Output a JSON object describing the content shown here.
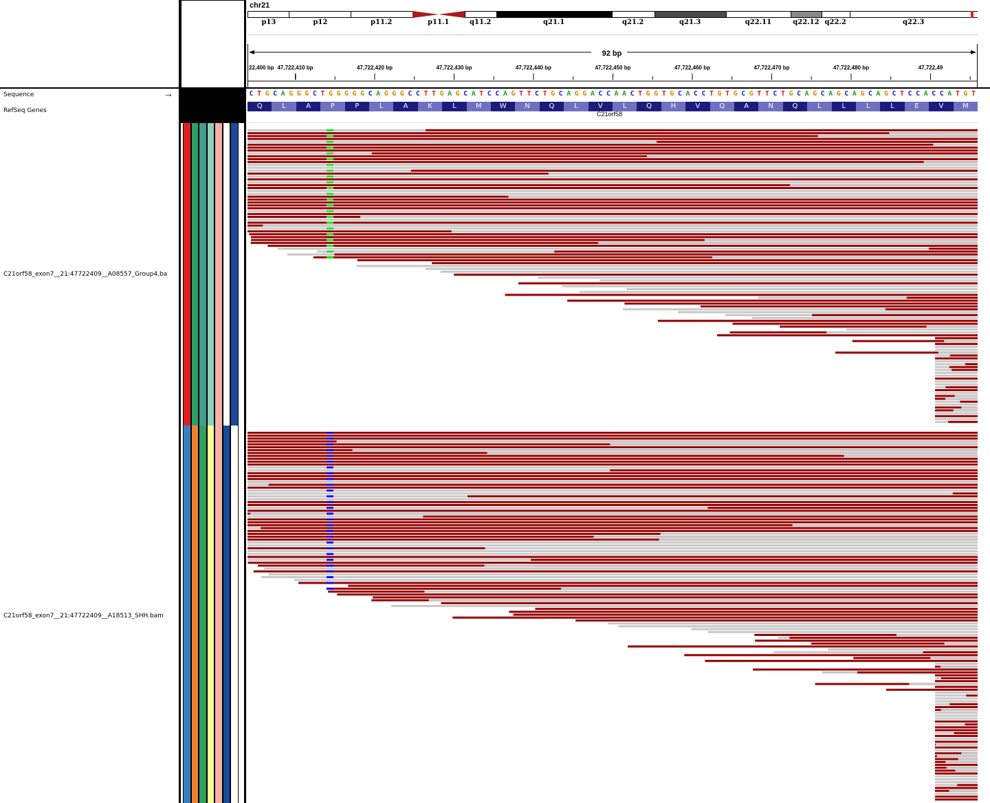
{
  "chromosome": "chr21",
  "ideogram": {
    "bands": [
      {
        "label": "p13",
        "stain": "white"
      },
      {
        "label": "p12",
        "stain": "white"
      },
      {
        "label": "p11.2",
        "stain": "white"
      },
      {
        "label": "p11.1",
        "stain": "centromere"
      },
      {
        "label": "q11.2",
        "stain": "white"
      },
      {
        "label": "q21.1",
        "stain": "black"
      },
      {
        "label": "q21.2",
        "stain": "white"
      },
      {
        "label": "q21.3",
        "stain": "dark"
      },
      {
        "label": "q22.11",
        "stain": "white"
      },
      {
        "label": "q22.12",
        "stain": "grey"
      },
      {
        "label": "q22.2",
        "stain": "white"
      },
      {
        "label": "q22.3",
        "stain": "white"
      }
    ],
    "colors": {
      "white": "#ffffff",
      "black": "#000000",
      "dark": "#4a4a4a",
      "grey": "#888888",
      "centromere": "#aa1a1a",
      "marker": "#e02020"
    }
  },
  "ruler": {
    "span_label": "92 bp",
    "ticks": [
      "22,400 bp",
      "47,722,410 bp",
      "47,722,420 bp",
      "47,722,430 bp",
      "47,722,440 bp",
      "47,722,450 bp",
      "47,722,460 bp",
      "47,722,470 bp",
      "47,722,480 bp",
      "47,722,49"
    ]
  },
  "tracks": {
    "sequence_label": "Sequence",
    "refseq_label": "RefSeq Genes",
    "bam1_label": "C21orf58_exon7__21:47722409__A08557_Group4.ba",
    "bam2_label": "C21orf58_exon7__21:47722409__A18513_SHH.bam",
    "strand_arrow": "→"
  },
  "sequence": "CTGCAGGGCTGGGGGCAGGGCCTTGAGCATCCAGTTCTGCAGGACCAACTGGTGCACCTGTGCGTTCTGCAGCAGCAGCAGCTCCACCATGT",
  "base_colors": {
    "A": "#22a022",
    "C": "#1a1ad0",
    "G": "#d18a00",
    "T": "#d01a1a"
  },
  "amino_acids": [
    "Q",
    "L",
    "A",
    "P",
    "P",
    "L",
    "A",
    "K",
    "L",
    "M",
    "W",
    "N",
    "Q",
    "L",
    "V",
    "L",
    "Q",
    "H",
    "V",
    "Q",
    "A",
    "N",
    "Q",
    "L",
    "L",
    "L",
    "L",
    "E",
    "V",
    "M"
  ],
  "gene_name": "C21orf58",
  "attribute_colors": {
    "sample1": [
      "#e02020",
      "#2aa06a",
      "#40a090",
      "#90d0c0",
      "#f5b0a8",
      "#ffffff",
      "#1a4a9a"
    ],
    "sample2": [
      "#3a80c0",
      "#f08030",
      "#30a060",
      "#ffff99",
      "#f5b0a8",
      "#1a4a9a",
      "#ffffff"
    ]
  },
  "read_colors": {
    "forward": "#c8c8c8",
    "reverse": "#960000",
    "snv_sample1": "#22e022",
    "snv_sample2": "#1010ee"
  }
}
